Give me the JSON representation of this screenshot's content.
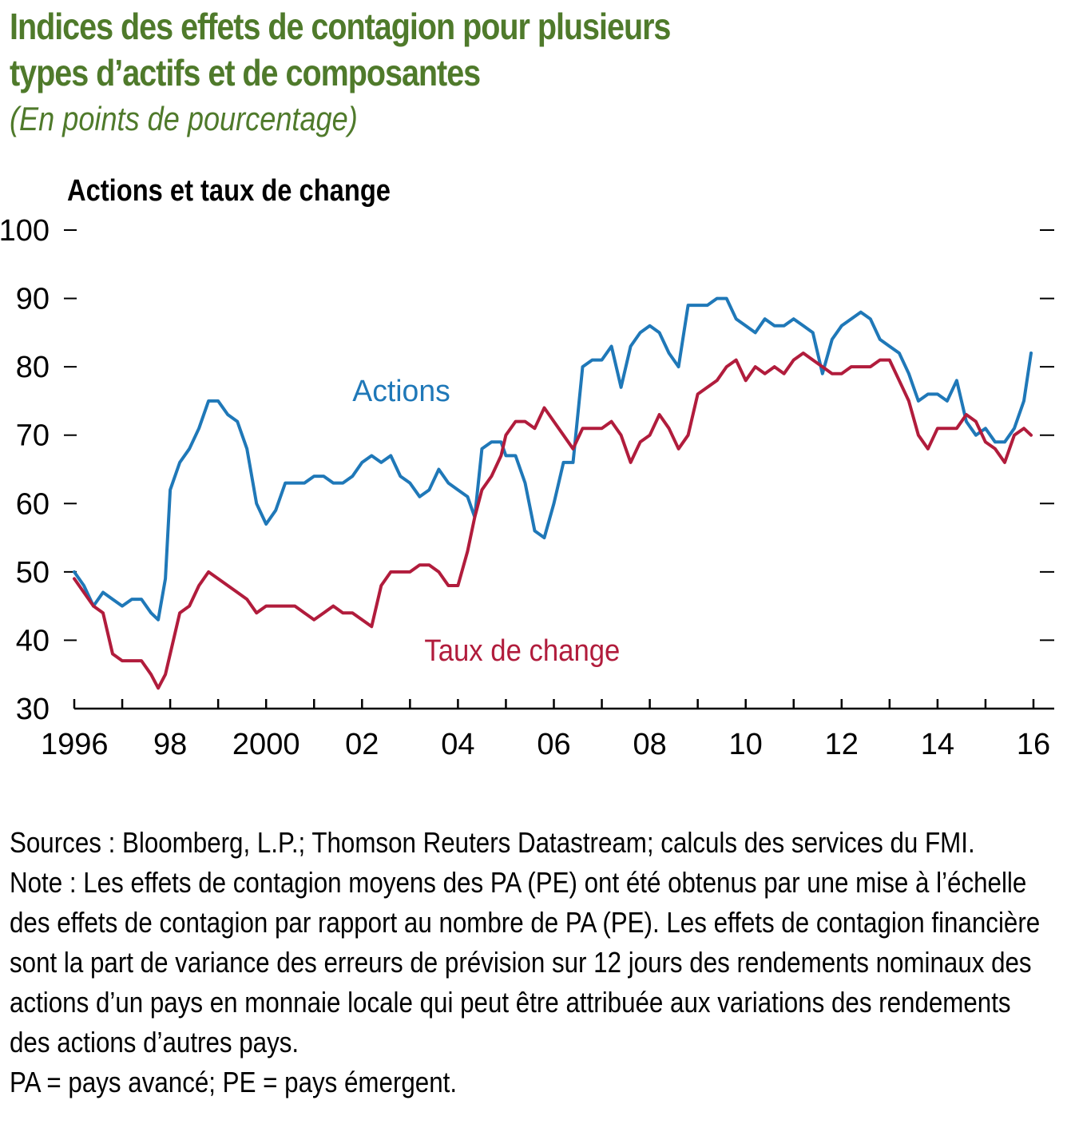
{
  "title_line1": "Indices des effets de contagion pour plusieurs",
  "title_line2": "types d’actifs et de composantes",
  "subtitle": "(En points de pourcentage)",
  "panel_title": "Actions et taux de change",
  "sources": "Sources : Bloomberg, L.P.; Thomson Reuters Datastream; calculs des services du FMI.",
  "note": "Note : Les effets de contagion moyens des PA (PE) ont été obtenus par une mise à l’échelle des effets de contagion par rapport au nombre de PA (PE). Les effets de contagion financière sont la part de variance des erreurs de prévision sur 12 jours des rendements nominaux des actions d’un pays en monnaie locale qui peut être attribuée aux variations des rendements des actions d’autres pays.",
  "note_line2": "PA = pays avancé; PE = pays émergent.",
  "colors": {
    "title": "#4f7a2b",
    "actions": "#1f78b8",
    "taux": "#b11c3c"
  },
  "chart_data": {
    "type": "line",
    "title": "Actions et taux de change",
    "xlabel": "",
    "ylabel": "",
    "xlim": [
      1996,
      2016.1
    ],
    "ylim": [
      30,
      100
    ],
    "yticks": [
      100,
      90,
      80,
      70,
      60,
      50,
      40,
      30
    ],
    "xticks": [
      {
        "value": 1996,
        "label": "1996"
      },
      {
        "value": 1998,
        "label": "98"
      },
      {
        "value": 2000,
        "label": "2000"
      },
      {
        "value": 2002,
        "label": "02"
      },
      {
        "value": 2004,
        "label": "04"
      },
      {
        "value": 2006,
        "label": "06"
      },
      {
        "value": 2008,
        "label": "08"
      },
      {
        "value": 2010,
        "label": "10"
      },
      {
        "value": 2012,
        "label": "12"
      },
      {
        "value": 2014,
        "label": "14"
      },
      {
        "value": 2016,
        "label": "16"
      }
    ],
    "annotations": [
      {
        "text": "Actions",
        "series": "Actions",
        "x": 2001.8,
        "y": 75
      },
      {
        "text": "Taux de change",
        "series": "Taux de change",
        "x": 2003.3,
        "y": 37
      }
    ],
    "series": [
      {
        "name": "Actions",
        "color": "#1f78b8",
        "x": [
          1996.0,
          1996.2,
          1996.4,
          1996.6,
          1996.8,
          1997.0,
          1997.2,
          1997.4,
          1997.6,
          1997.75,
          1997.9,
          1998.0,
          1998.2,
          1998.4,
          1998.6,
          1998.8,
          1999.0,
          1999.2,
          1999.4,
          1999.6,
          1999.8,
          2000.0,
          2000.2,
          2000.4,
          2000.6,
          2000.8,
          2001.0,
          2001.2,
          2001.4,
          2001.6,
          2001.8,
          2002.0,
          2002.2,
          2002.4,
          2002.6,
          2002.8,
          2003.0,
          2003.2,
          2003.4,
          2003.6,
          2003.8,
          2004.0,
          2004.2,
          2004.35,
          2004.5,
          2004.7,
          2004.9,
          2005.0,
          2005.2,
          2005.4,
          2005.6,
          2005.8,
          2006.0,
          2006.2,
          2006.4,
          2006.6,
          2006.8,
          2007.0,
          2007.2,
          2007.4,
          2007.6,
          2007.8,
          2008.0,
          2008.2,
          2008.4,
          2008.6,
          2008.8,
          2009.0,
          2009.2,
          2009.4,
          2009.6,
          2009.8,
          2010.0,
          2010.2,
          2010.4,
          2010.6,
          2010.8,
          2011.0,
          2011.2,
          2011.4,
          2011.6,
          2011.8,
          2012.0,
          2012.2,
          2012.4,
          2012.6,
          2012.8,
          2013.0,
          2013.2,
          2013.4,
          2013.6,
          2013.8,
          2014.0,
          2014.2,
          2014.4,
          2014.6,
          2014.8,
          2015.0,
          2015.2,
          2015.4,
          2015.6,
          2015.8,
          2015.95
        ],
        "values": [
          50,
          48,
          45,
          47,
          46,
          45,
          46,
          46,
          44,
          43,
          49,
          62,
          66,
          68,
          71,
          75,
          75,
          73,
          72,
          68,
          60,
          57,
          59,
          63,
          63,
          63,
          64,
          64,
          63,
          63,
          64,
          66,
          67,
          66,
          67,
          64,
          63,
          61,
          62,
          65,
          63,
          62,
          61,
          58,
          68,
          69,
          69,
          67,
          67,
          63,
          56,
          55,
          60,
          66,
          66,
          80,
          81,
          81,
          83,
          77,
          83,
          85,
          86,
          85,
          82,
          80,
          89,
          89,
          89,
          90,
          90,
          87,
          86,
          85,
          87,
          86,
          86,
          87,
          86,
          85,
          79,
          84,
          86,
          87,
          88,
          87,
          84,
          83,
          82,
          79,
          75,
          76,
          76,
          75,
          78,
          72,
          70,
          71,
          69,
          69,
          71,
          75,
          82
        ]
      },
      {
        "name": "Taux de change",
        "color": "#b11c3c",
        "x": [
          1996.0,
          1996.2,
          1996.4,
          1996.6,
          1996.8,
          1997.0,
          1997.2,
          1997.4,
          1997.6,
          1997.75,
          1997.9,
          1998.0,
          1998.2,
          1998.4,
          1998.6,
          1998.8,
          1999.0,
          1999.2,
          1999.4,
          1999.6,
          1999.8,
          2000.0,
          2000.2,
          2000.4,
          2000.6,
          2000.8,
          2001.0,
          2001.2,
          2001.4,
          2001.6,
          2001.8,
          2002.0,
          2002.2,
          2002.4,
          2002.6,
          2002.8,
          2003.0,
          2003.2,
          2003.4,
          2003.6,
          2003.8,
          2004.0,
          2004.2,
          2004.35,
          2004.5,
          2004.7,
          2004.9,
          2005.0,
          2005.2,
          2005.4,
          2005.6,
          2005.8,
          2006.0,
          2006.2,
          2006.4,
          2006.6,
          2006.8,
          2007.0,
          2007.2,
          2007.4,
          2007.6,
          2007.8,
          2008.0,
          2008.2,
          2008.4,
          2008.6,
          2008.8,
          2009.0,
          2009.2,
          2009.4,
          2009.6,
          2009.8,
          2010.0,
          2010.2,
          2010.4,
          2010.6,
          2010.8,
          2011.0,
          2011.2,
          2011.4,
          2011.6,
          2011.8,
          2012.0,
          2012.2,
          2012.4,
          2012.6,
          2012.8,
          2013.0,
          2013.2,
          2013.4,
          2013.6,
          2013.8,
          2014.0,
          2014.2,
          2014.4,
          2014.6,
          2014.8,
          2015.0,
          2015.2,
          2015.4,
          2015.6,
          2015.8,
          2015.95
        ],
        "values": [
          49,
          47,
          45,
          44,
          38,
          37,
          37,
          37,
          35,
          33,
          35,
          38,
          44,
          45,
          48,
          50,
          49,
          48,
          47,
          46,
          44,
          45,
          45,
          45,
          45,
          44,
          43,
          44,
          45,
          44,
          44,
          43,
          42,
          48,
          50,
          50,
          50,
          51,
          51,
          50,
          48,
          48,
          53,
          58,
          62,
          64,
          67,
          70,
          72,
          72,
          71,
          74,
          72,
          70,
          68,
          71,
          71,
          71,
          72,
          70,
          66,
          69,
          70,
          73,
          71,
          68,
          70,
          76,
          77,
          78,
          80,
          81,
          78,
          80,
          79,
          80,
          79,
          81,
          82,
          81,
          80,
          79,
          79,
          80,
          80,
          80,
          81,
          81,
          78,
          75,
          70,
          68,
          71,
          71,
          71,
          73,
          72,
          69,
          68,
          66,
          70,
          71,
          70
        ]
      }
    ]
  }
}
